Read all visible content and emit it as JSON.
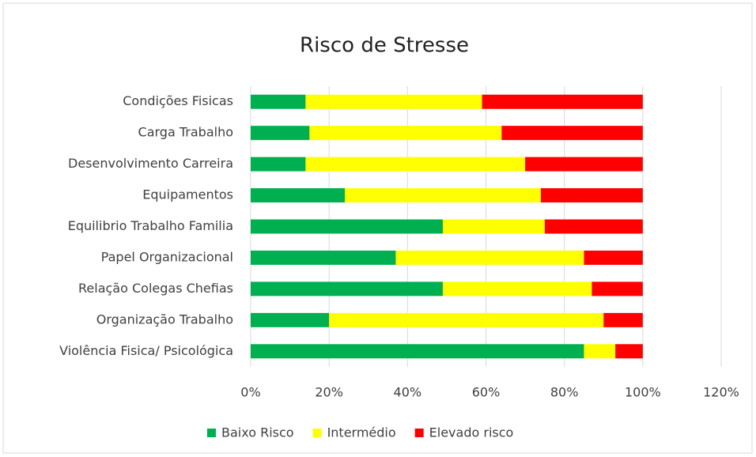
{
  "chart_data": {
    "type": "stacked_barh",
    "title": "Risco de Stresse",
    "categories": [
      "Condições Fisicas",
      "Carga Trabalho",
      "Desenvolvimento Carreira",
      "Equipamentos",
      "Equilibrio Trabalho Familia",
      "Papel Organizacional",
      "Relação Colegas Chefias",
      "Organização Trabalho",
      "Violência Fisica/ Psicológica"
    ],
    "series": [
      {
        "name": "Baixo Risco",
        "color": "#00b050",
        "values": [
          14,
          15,
          14,
          24,
          49,
          37,
          49,
          20,
          85
        ]
      },
      {
        "name": "Intermédio",
        "color": "#ffff00",
        "values": [
          45,
          49,
          56,
          50,
          26,
          48,
          38,
          70,
          8
        ]
      },
      {
        "name": "Elevado risco",
        "color": "#ff0000",
        "values": [
          41,
          36,
          30,
          26,
          25,
          15,
          13,
          10,
          7
        ]
      }
    ],
    "xlim": [
      0,
      120
    ],
    "xticks": [
      {
        "value": 0,
        "label": "0%"
      },
      {
        "value": 20,
        "label": "20%"
      },
      {
        "value": 40,
        "label": "40%"
      },
      {
        "value": 60,
        "label": "60%"
      },
      {
        "value": 80,
        "label": "80%"
      },
      {
        "value": 100,
        "label": "100%"
      },
      {
        "value": 120,
        "label": "120%"
      }
    ],
    "grid": true,
    "legend": "bottom"
  }
}
